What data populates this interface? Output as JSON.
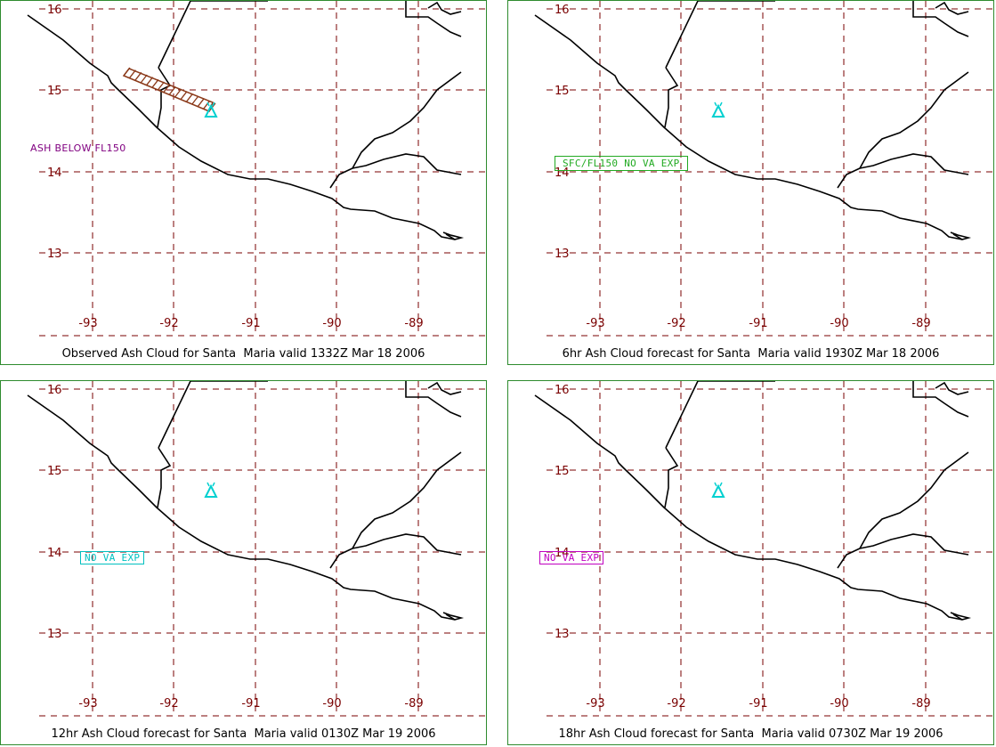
{
  "map": {
    "lat_labels": [
      "16",
      "15",
      "14",
      "13"
    ],
    "lon_labels": [
      "-93",
      "-92",
      "-91",
      "-90",
      "-89"
    ],
    "colors": {
      "grid": "#7a0000",
      "coast": "#000000",
      "volcano": "#00d0d0",
      "frame": "#2e8b2e"
    },
    "volcano_icon": "volcano-triangle-icon"
  },
  "panels": [
    {
      "caption": "Observed Ash Cloud for Santa  Maria valid 1332Z Mar 18 2006",
      "note": {
        "text": "ASH BELOW FL150",
        "color": "#800080",
        "boxed": false
      },
      "ash_plume": true
    },
    {
      "caption": "6hr Ash Cloud forecast for Santa  Maria valid 1930Z Mar 18 2006",
      "note": {
        "text": "SFC/FL150 NO VA EXP",
        "color": "#22aa22",
        "boxed": true
      },
      "ash_plume": false
    },
    {
      "caption": "12hr Ash Cloud forecast for Santa  Maria valid 0130Z Mar 19 2006",
      "note": {
        "text": "NO VA EXP",
        "color": "#00c0c0",
        "boxed": true
      },
      "ash_plume": false
    },
    {
      "caption": "18hr Ash Cloud forecast for Santa  Maria valid 0730Z Mar 19 2006",
      "note": {
        "text": "NO VA EXP",
        "color": "#c000c0",
        "boxed": true
      },
      "ash_plume": false
    }
  ]
}
